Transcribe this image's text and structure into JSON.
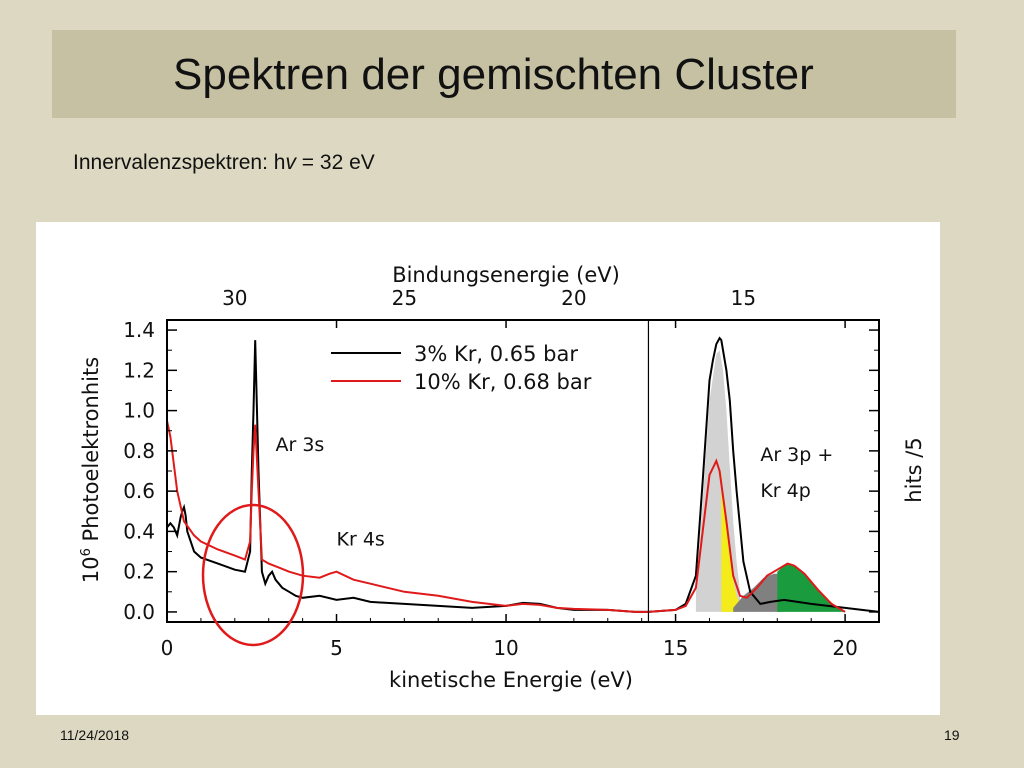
{
  "slide": {
    "title": "Spektren der gemischten Cluster",
    "subtitle_prefix": "Innervalenzspektren: h",
    "subtitle_symbol": "v",
    "subtitle_suffix": " = 32 eV",
    "date": "11/24/2018",
    "page_number": "19"
  },
  "chart_data": {
    "type": "line",
    "xlabel": "kinetische Energie (eV)",
    "x2label": "Bindungsenergie (eV)",
    "ylabel_prefix": "10",
    "ylabel_exponent": "6",
    "ylabel_suffix": " Photoelektronhits",
    "right_label": "hits /5",
    "xlim": [
      0,
      21
    ],
    "ylim": [
      -0.05,
      1.45
    ],
    "x_break": 14.2,
    "xticks": [
      0,
      5,
      10,
      15,
      20
    ],
    "xtick_labels": [
      "0",
      "5",
      "10",
      "15",
      "20"
    ],
    "x2ticks": [
      2,
      7,
      12,
      17
    ],
    "x2tick_labels": [
      "30",
      "25",
      "20",
      "15"
    ],
    "yticks": [
      0.0,
      0.2,
      0.4,
      0.6,
      0.8,
      1.0,
      1.2,
      1.4
    ],
    "ytick_labels": [
      "0.0",
      "0.2",
      "0.4",
      "0.6",
      "0.8",
      "1.0",
      "1.2",
      "1.4"
    ],
    "legend_position": "top-center",
    "series": [
      {
        "name": "3% Kr, 0.65 bar",
        "color": "#000000",
        "x": [
          0.0,
          0.1,
          0.2,
          0.3,
          0.4,
          0.45,
          0.5,
          0.55,
          0.6,
          0.8,
          1.0,
          1.5,
          2.0,
          2.3,
          2.45,
          2.5,
          2.55,
          2.6,
          2.7,
          2.8,
          2.9,
          3.0,
          3.1,
          3.2,
          3.4,
          3.6,
          3.8,
          4.0,
          4.5,
          5.0,
          5.5,
          6.0,
          7.0,
          8.0,
          9.0,
          10.0,
          10.5,
          11.0,
          11.5,
          12.0,
          13.0,
          13.8,
          14.2
        ],
        "y": [
          0.42,
          0.44,
          0.42,
          0.38,
          0.47,
          0.5,
          0.52,
          0.48,
          0.4,
          0.3,
          0.27,
          0.24,
          0.21,
          0.2,
          0.3,
          0.7,
          1.0,
          1.35,
          0.7,
          0.2,
          0.14,
          0.18,
          0.2,
          0.16,
          0.12,
          0.1,
          0.08,
          0.07,
          0.08,
          0.06,
          0.07,
          0.05,
          0.04,
          0.03,
          0.02,
          0.03,
          0.045,
          0.04,
          0.02,
          0.01,
          0.01,
          0.0,
          0.0
        ]
      },
      {
        "name": "10% Kr, 0.68 bar",
        "color": "#e01a1a",
        "x": [
          0.0,
          0.1,
          0.3,
          0.5,
          0.8,
          1.0,
          1.5,
          2.0,
          2.3,
          2.45,
          2.5,
          2.55,
          2.6,
          2.7,
          2.8,
          3.0,
          3.3,
          3.6,
          4.0,
          4.5,
          4.8,
          5.0,
          5.5,
          6.0,
          7.0,
          8.0,
          9.0,
          10.0,
          10.5,
          11.0,
          11.5,
          12.0,
          13.0,
          13.8,
          14.2
        ],
        "y": [
          0.95,
          0.87,
          0.6,
          0.45,
          0.38,
          0.35,
          0.31,
          0.28,
          0.26,
          0.35,
          0.6,
          0.8,
          0.93,
          0.6,
          0.26,
          0.24,
          0.22,
          0.2,
          0.18,
          0.17,
          0.19,
          0.2,
          0.16,
          0.14,
          0.1,
          0.08,
          0.05,
          0.03,
          0.04,
          0.035,
          0.02,
          0.015,
          0.01,
          0.0,
          0.0
        ]
      }
    ],
    "right_panel": {
      "series": [
        {
          "name": "3% Kr, 0.65 bar",
          "color": "#000000",
          "x": [
            14.2,
            15.0,
            15.3,
            15.6,
            15.8,
            16.0,
            16.1,
            16.2,
            16.3,
            16.35,
            16.5,
            16.6,
            16.7,
            16.8,
            17.0,
            17.2,
            17.5,
            17.8,
            18.2,
            18.6,
            19.0,
            19.5,
            20.0,
            20.5,
            21.0
          ],
          "y": [
            0.0,
            0.01,
            0.04,
            0.18,
            0.65,
            1.15,
            1.25,
            1.33,
            1.36,
            1.35,
            1.2,
            1.05,
            0.8,
            0.6,
            0.25,
            0.1,
            0.04,
            0.05,
            0.06,
            0.05,
            0.04,
            0.03,
            0.02,
            0.01,
            0.0
          ]
        },
        {
          "name": "10% Kr, 0.68 bar",
          "color": "#e01a1a",
          "x": [
            14.2,
            15.0,
            15.3,
            15.6,
            15.8,
            16.0,
            16.2,
            16.3,
            16.5,
            16.7,
            16.9,
            17.1,
            17.4,
            17.7,
            18.0,
            18.3,
            18.5,
            18.8,
            19.2,
            19.6,
            19.9,
            20.0
          ],
          "y": [
            0.0,
            0.01,
            0.03,
            0.12,
            0.4,
            0.68,
            0.75,
            0.7,
            0.45,
            0.18,
            0.08,
            0.07,
            0.12,
            0.18,
            0.21,
            0.24,
            0.23,
            0.19,
            0.11,
            0.04,
            0.01,
            0.0
          ]
        }
      ],
      "fills": [
        {
          "name": "gray-peak",
          "color": "#d2d2d2",
          "x": [
            15.6,
            15.8,
            16.0,
            16.2,
            16.3,
            16.4,
            16.5,
            16.6,
            16.7,
            16.8,
            16.9
          ],
          "y": [
            0.1,
            0.55,
            1.05,
            1.28,
            1.3,
            1.2,
            1.0,
            0.72,
            0.45,
            0.25,
            0.1
          ]
        },
        {
          "name": "yellow-peak",
          "color": "#f3ec1a",
          "x": [
            16.35,
            16.4,
            16.5,
            16.6,
            16.7,
            16.8,
            16.9
          ],
          "y": [
            0.7,
            0.58,
            0.42,
            0.28,
            0.16,
            0.08,
            0.04
          ]
        },
        {
          "name": "gray-shoulder",
          "color": "#808080",
          "x": [
            16.7,
            17.0,
            17.3,
            17.6,
            17.9,
            18.1
          ],
          "y": [
            0.02,
            0.08,
            0.12,
            0.17,
            0.19,
            0.19
          ]
        },
        {
          "name": "green-peak",
          "color": "#1a9c3e",
          "x": [
            18.0,
            18.2,
            18.4,
            18.6,
            18.8,
            19.0,
            19.2,
            19.5,
            19.8,
            20.0
          ],
          "y": [
            0.2,
            0.23,
            0.24,
            0.22,
            0.19,
            0.15,
            0.11,
            0.06,
            0.02,
            0.0
          ]
        }
      ]
    },
    "annotations": [
      {
        "text": "Ar 3s",
        "x": 3.2,
        "y": 0.8
      },
      {
        "text": "Kr 4s",
        "x": 5.0,
        "y": 0.33
      },
      {
        "text": "Ar 3p +",
        "x": 17.5,
        "y": 0.75
      },
      {
        "text": "Kr 4p",
        "x": 17.5,
        "y": 0.57
      }
    ]
  }
}
